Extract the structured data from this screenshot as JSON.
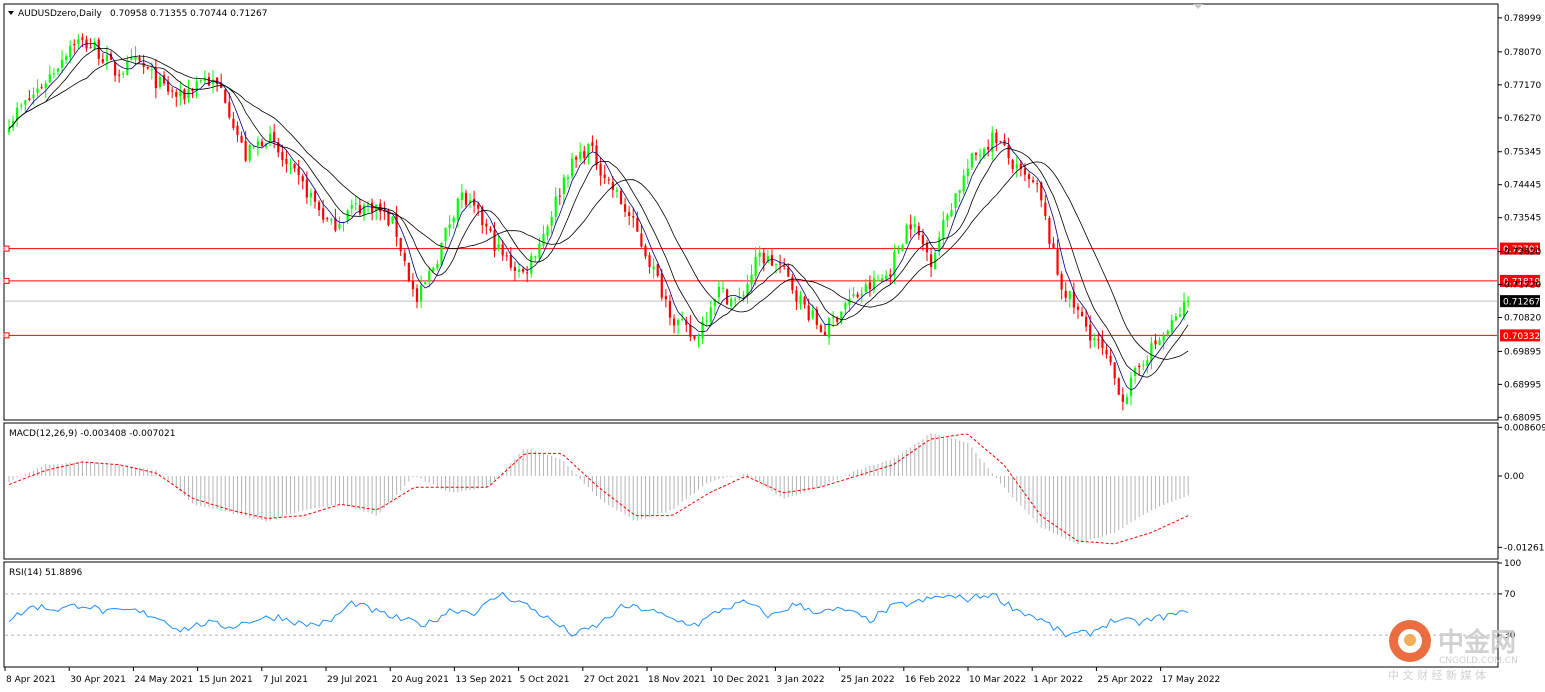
{
  "header": {
    "symbol": "AUDUSDzero,Daily",
    "ohlc": "0.70958 0.71355 0.70744 0.71267"
  },
  "watermark": {
    "brand": "中金网",
    "site": "CNGOLD.COM.CN",
    "tagline": "中 文 财 经 新 媒 体",
    "logo_color": "#e8541f"
  },
  "colors": {
    "bull": "#00ff00",
    "bear": "#ff0000",
    "ma": "#000080",
    "level": "#ff0000",
    "current": "#000000",
    "macd_signal": "#ff0000",
    "rsi": "#1e90ff"
  },
  "chart_data": [
    {
      "type": "candlestick",
      "title": "AUDUSDzero,Daily",
      "ylim": [
        0.6805,
        0.7935
      ],
      "y_ticks": [
        "0.78999",
        "0.78070",
        "0.77170",
        "0.76270",
        "0.75345",
        "0.74445",
        "0.73545",
        "0.72620",
        "0.71720",
        "0.70820",
        "0.69895",
        "0.68995",
        "0.68095"
      ],
      "x_ticks": [
        "8 Apr 2021",
        "30 Apr 2021",
        "24 May 2021",
        "15 Jun 2021",
        "7 Jul 2021",
        "29 Jul 2021",
        "20 Aug 2021",
        "13 Sep 2021",
        "5 Oct 2021",
        "27 Oct 2021",
        "18 Nov 2021",
        "10 Dec 2021",
        "3 Jan 2022",
        "25 Jan 2022",
        "16 Feb 2022",
        "10 Mar 2022",
        "1 Apr 2022",
        "25 Apr 2022",
        "17 May 2022"
      ],
      "last_close": 0.71267,
      "last_close_label": "0.71267",
      "levels": [
        {
          "value": 0.72701,
          "label": "0.72701"
        },
        {
          "value": 0.71819,
          "label": "0.71819"
        },
        {
          "value": 0.70332,
          "label": "0.70332"
        }
      ],
      "price_anchors": [
        0.762,
        0.768,
        0.775,
        0.784,
        0.782,
        0.775,
        0.778,
        0.772,
        0.768,
        0.774,
        0.77,
        0.752,
        0.758,
        0.749,
        0.742,
        0.733,
        0.738,
        0.739,
        0.733,
        0.712,
        0.725,
        0.742,
        0.735,
        0.725,
        0.72,
        0.732,
        0.748,
        0.755,
        0.745,
        0.735,
        0.722,
        0.708,
        0.702,
        0.716,
        0.712,
        0.725,
        0.722,
        0.712,
        0.704,
        0.712,
        0.716,
        0.72,
        0.735,
        0.724,
        0.74,
        0.752,
        0.758,
        0.748,
        0.743,
        0.718,
        0.708,
        0.699,
        0.686,
        0.698,
        0.704,
        0.71267
      ],
      "moving_averages": [
        "MA fast",
        "MA medium",
        "MA slow"
      ]
    },
    {
      "type": "histogram+line",
      "title": "MACD(12,26,9) -0.003408 -0.007021",
      "ylim": [
        -0.0145,
        0.0092
      ],
      "y_ticks": [
        "0.008609",
        "0.00",
        "-0.012617"
      ],
      "macd_anchors": [
        -0.001,
        0.002,
        0.0025,
        0.002,
        0.001,
        -0.005,
        -0.0065,
        -0.008,
        -0.006,
        -0.005,
        -0.007,
        0.0,
        -0.003,
        -0.002,
        0.005,
        0.003,
        -0.004,
        -0.008,
        -0.006,
        -0.001,
        0.0005,
        -0.004,
        -0.002,
        0.001,
        0.003,
        0.0075,
        0.006,
        -0.002,
        -0.009,
        -0.012,
        -0.01,
        -0.006,
        -0.003408
      ],
      "signal_anchors": [
        -0.0015,
        0.001,
        0.0025,
        0.002,
        0.0005,
        -0.004,
        -0.006,
        -0.0075,
        -0.007,
        -0.005,
        -0.006,
        -0.002,
        -0.002,
        -0.002,
        0.004,
        0.004,
        -0.002,
        -0.007,
        -0.007,
        -0.003,
        0.0,
        -0.003,
        -0.002,
        0.0,
        0.002,
        0.0065,
        0.0075,
        0.002,
        -0.007,
        -0.0115,
        -0.012,
        -0.01,
        -0.007021
      ]
    },
    {
      "type": "line",
      "title": "RSI(14) 51.8896",
      "ylim": [
        0,
        100
      ],
      "y_ticks": [
        "100",
        "70",
        "30"
      ],
      "levels": [
        70,
        30
      ],
      "rsi_anchors": [
        45,
        58,
        55,
        60,
        52,
        54,
        48,
        35,
        42,
        38,
        45,
        48,
        40,
        42,
        62,
        52,
        45,
        40,
        55,
        52,
        70,
        60,
        45,
        30,
        40,
        58,
        55,
        45,
        40,
        55,
        62,
        48,
        60,
        52,
        55,
        44,
        58,
        62,
        68,
        65,
        70,
        55,
        45,
        30,
        32,
        45,
        42,
        48,
        51.8896
      ]
    }
  ]
}
